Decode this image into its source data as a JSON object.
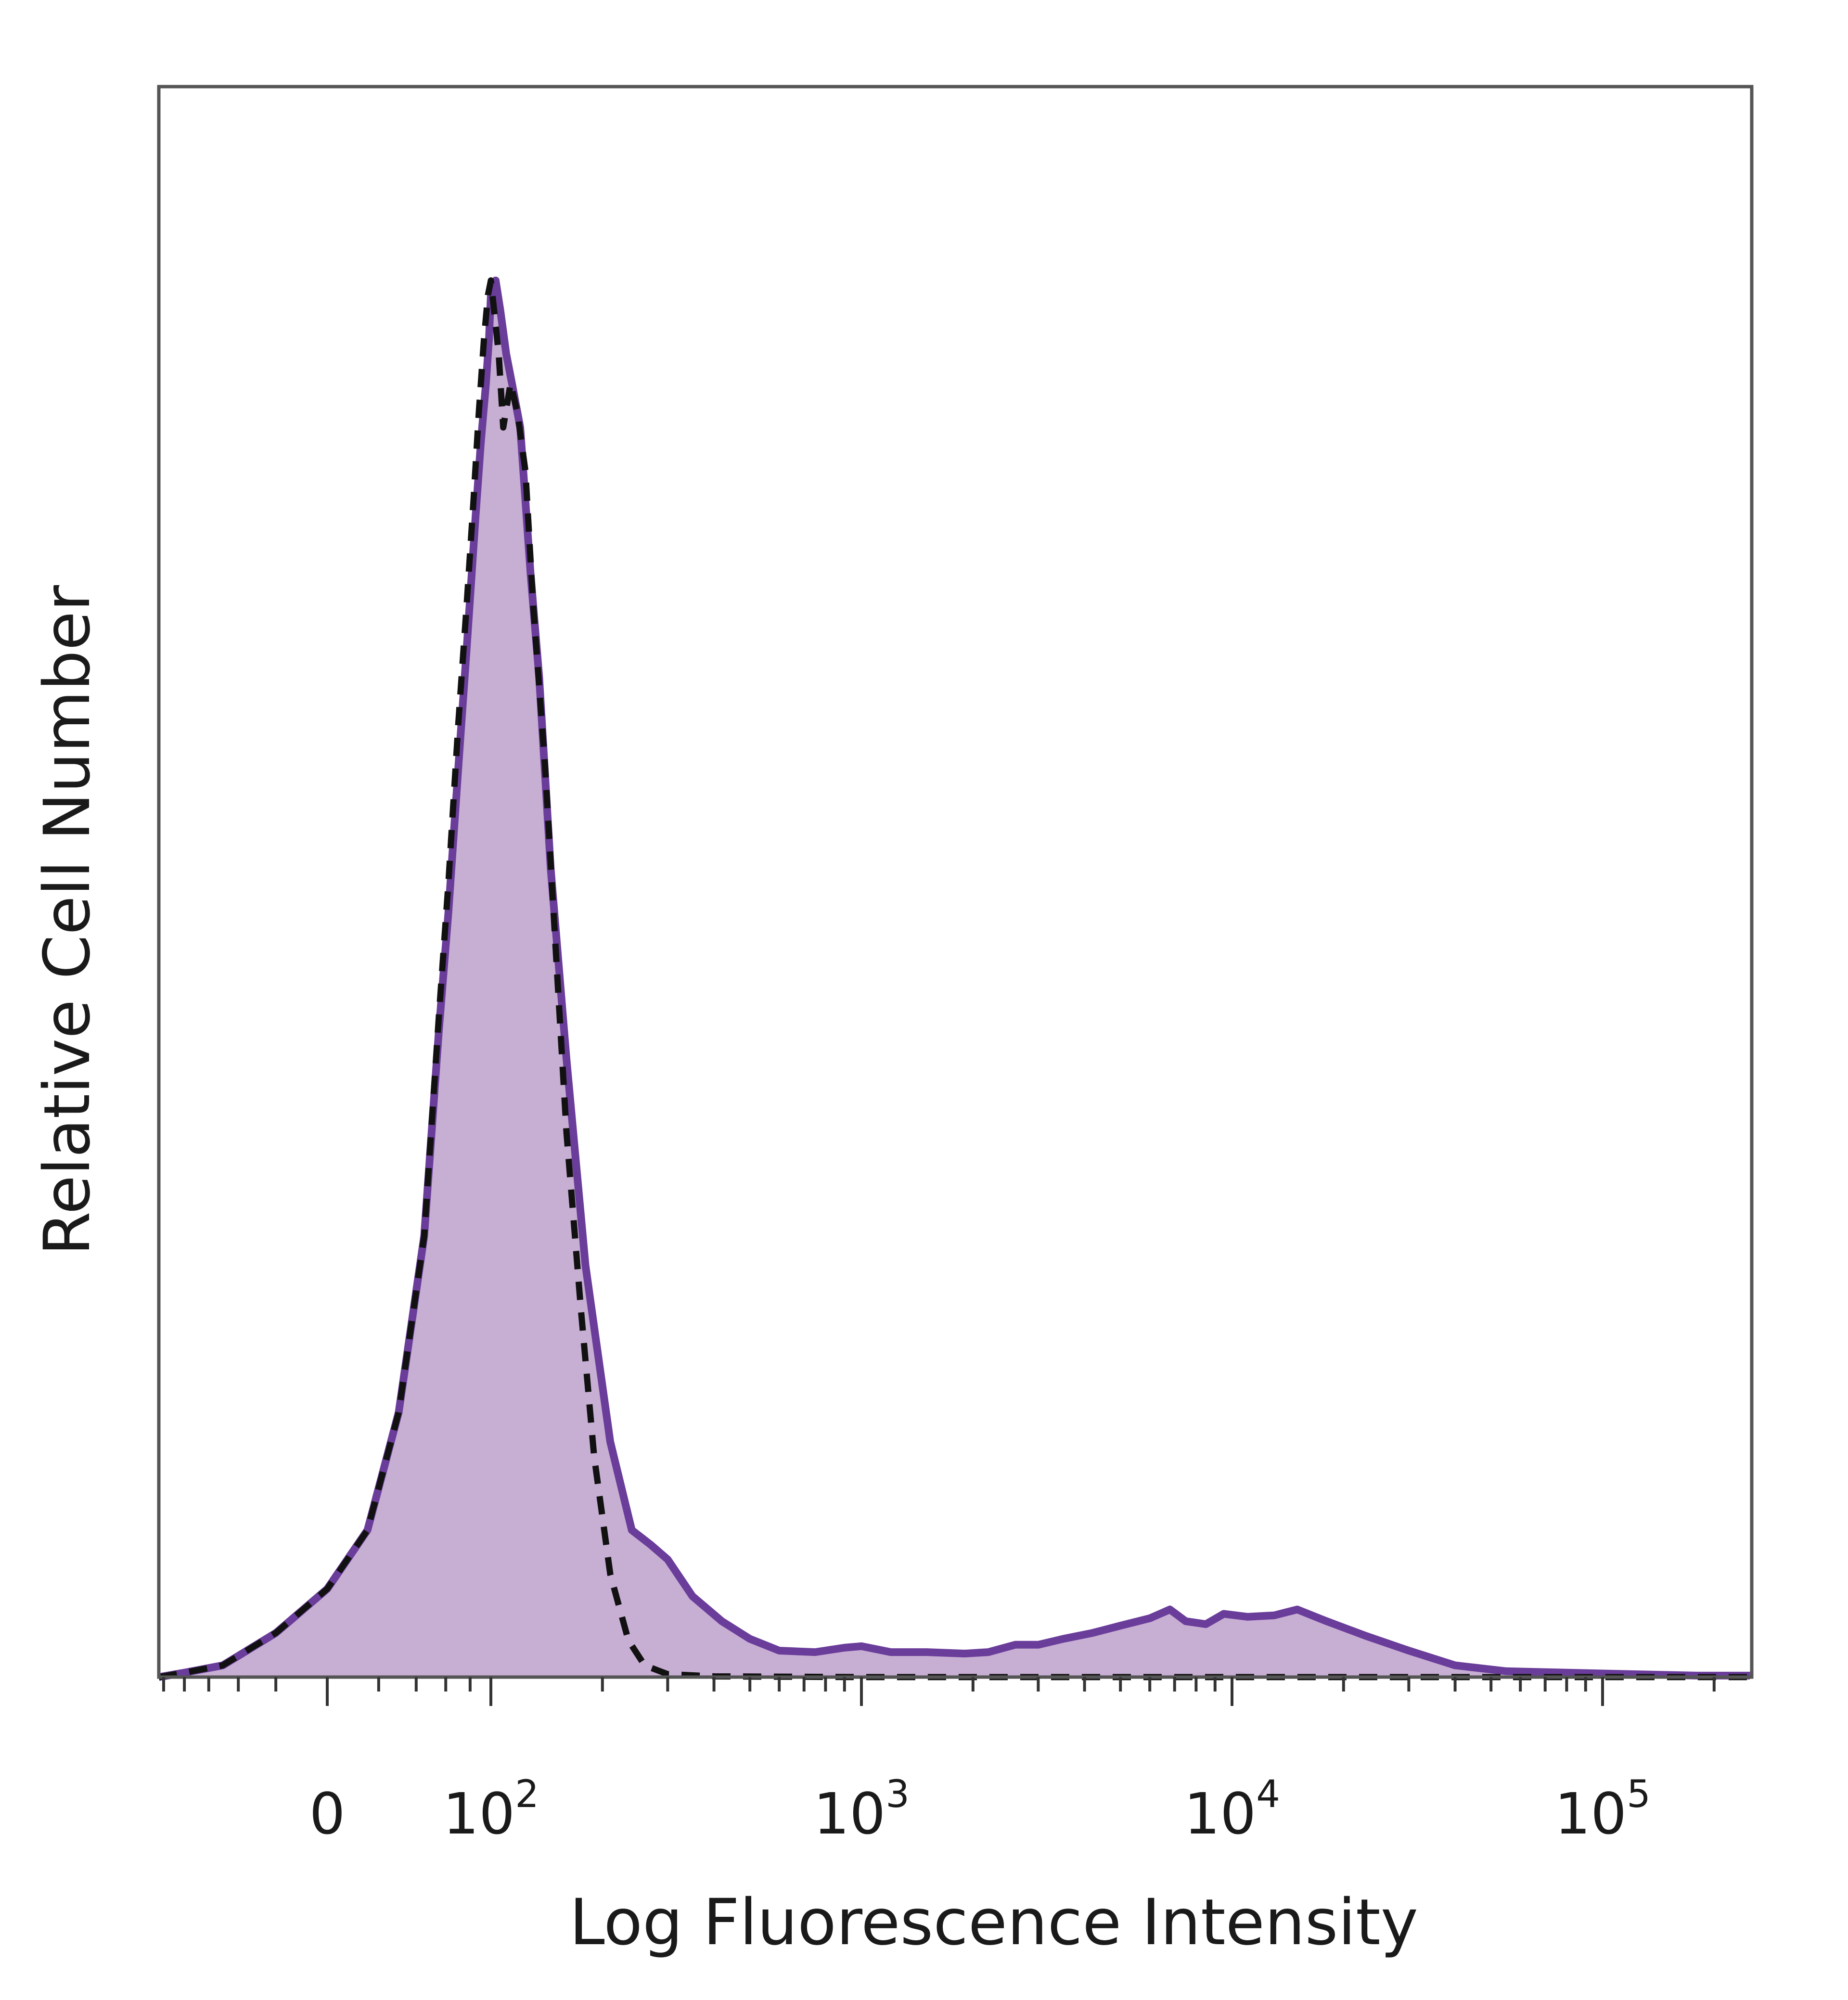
{
  "chart_data": {
    "type": "area",
    "xlabel": "Log Fluorescence Intensity",
    "ylabel": "Relative Cell Number",
    "x_scale": "biexponential",
    "x_ticks": [
      {
        "value": 0,
        "base": "0",
        "exp": ""
      },
      {
        "value": 100,
        "base": "10",
        "exp": "2"
      },
      {
        "value": 1000,
        "base": "10",
        "exp": "3"
      },
      {
        "value": 10000,
        "base": "10",
        "exp": "4"
      },
      {
        "value": 100000,
        "base": "10",
        "exp": "5"
      }
    ],
    "xlim": [
      -120,
      250000
    ],
    "ylim": [
      0,
      100
    ],
    "y_ticks": "none",
    "grid": false,
    "legend": "none",
    "series": [
      {
        "style": "filled-solid",
        "color": "#6a3d9a",
        "fill": "#c7aed3",
        "points": [
          [
            -120,
            0
          ],
          [
            -80,
            0.3
          ],
          [
            -50,
            0.8
          ],
          [
            -20,
            3
          ],
          [
            0,
            6
          ],
          [
            15,
            10
          ],
          [
            30,
            18
          ],
          [
            45,
            30
          ],
          [
            55,
            44
          ],
          [
            62,
            52
          ],
          [
            70,
            62
          ],
          [
            77,
            70
          ],
          [
            85,
            79
          ],
          [
            90,
            84
          ],
          [
            95,
            88
          ],
          [
            98,
            91
          ],
          [
            100,
            94
          ],
          [
            103,
            95
          ],
          [
            106,
            93
          ],
          [
            110,
            90
          ],
          [
            114,
            88
          ],
          [
            120,
            85
          ],
          [
            128,
            75
          ],
          [
            135,
            68
          ],
          [
            145,
            55
          ],
          [
            160,
            42
          ],
          [
            180,
            28
          ],
          [
            210,
            16
          ],
          [
            240,
            10
          ],
          [
            270,
            9
          ],
          [
            300,
            8
          ],
          [
            350,
            5.5
          ],
          [
            420,
            3.8
          ],
          [
            500,
            2.6
          ],
          [
            600,
            1.8
          ],
          [
            750,
            1.7
          ],
          [
            900,
            2
          ],
          [
            1000,
            2.1
          ],
          [
            1200,
            1.7
          ],
          [
            1500,
            1.7
          ],
          [
            1900,
            1.6
          ],
          [
            2200,
            1.7
          ],
          [
            2600,
            2.2
          ],
          [
            3000,
            2.2
          ],
          [
            3500,
            2.6
          ],
          [
            4200,
            3
          ],
          [
            5000,
            3.5
          ],
          [
            6000,
            4
          ],
          [
            6800,
            4.6
          ],
          [
            7500,
            3.8
          ],
          [
            8500,
            3.6
          ],
          [
            9500,
            4.3
          ],
          [
            11000,
            4.1
          ],
          [
            13000,
            4.2
          ],
          [
            15000,
            4.6
          ],
          [
            18000,
            3.8
          ],
          [
            23000,
            2.8
          ],
          [
            30000,
            1.8
          ],
          [
            40000,
            0.8
          ],
          [
            55000,
            0.4
          ],
          [
            80000,
            0.3
          ],
          [
            120000,
            0.2
          ],
          [
            180000,
            0.1
          ],
          [
            250000,
            0.1
          ]
        ]
      },
      {
        "style": "dashed",
        "color": "#111111",
        "points": [
          [
            -120,
            0
          ],
          [
            -80,
            0.3
          ],
          [
            -50,
            0.8
          ],
          [
            -20,
            3
          ],
          [
            0,
            6
          ],
          [
            15,
            10
          ],
          [
            30,
            18
          ],
          [
            45,
            30
          ],
          [
            55,
            45
          ],
          [
            62,
            54
          ],
          [
            70,
            65
          ],
          [
            77,
            73
          ],
          [
            83,
            80
          ],
          [
            88,
            86
          ],
          [
            93,
            91
          ],
          [
            97,
            94
          ],
          [
            100,
            95
          ],
          [
            102,
            93
          ],
          [
            105,
            90
          ],
          [
            108,
            85
          ],
          [
            113,
            88
          ],
          [
            118,
            86
          ],
          [
            124,
            82
          ],
          [
            130,
            73
          ],
          [
            140,
            62
          ],
          [
            150,
            49
          ],
          [
            160,
            37
          ],
          [
            175,
            25
          ],
          [
            190,
            15
          ],
          [
            210,
            7
          ],
          [
            235,
            2.5
          ],
          [
            260,
            0.8
          ],
          [
            300,
            0.2
          ],
          [
            400,
            0.05
          ],
          [
            1000,
            0
          ],
          [
            250000,
            0
          ]
        ]
      }
    ]
  }
}
